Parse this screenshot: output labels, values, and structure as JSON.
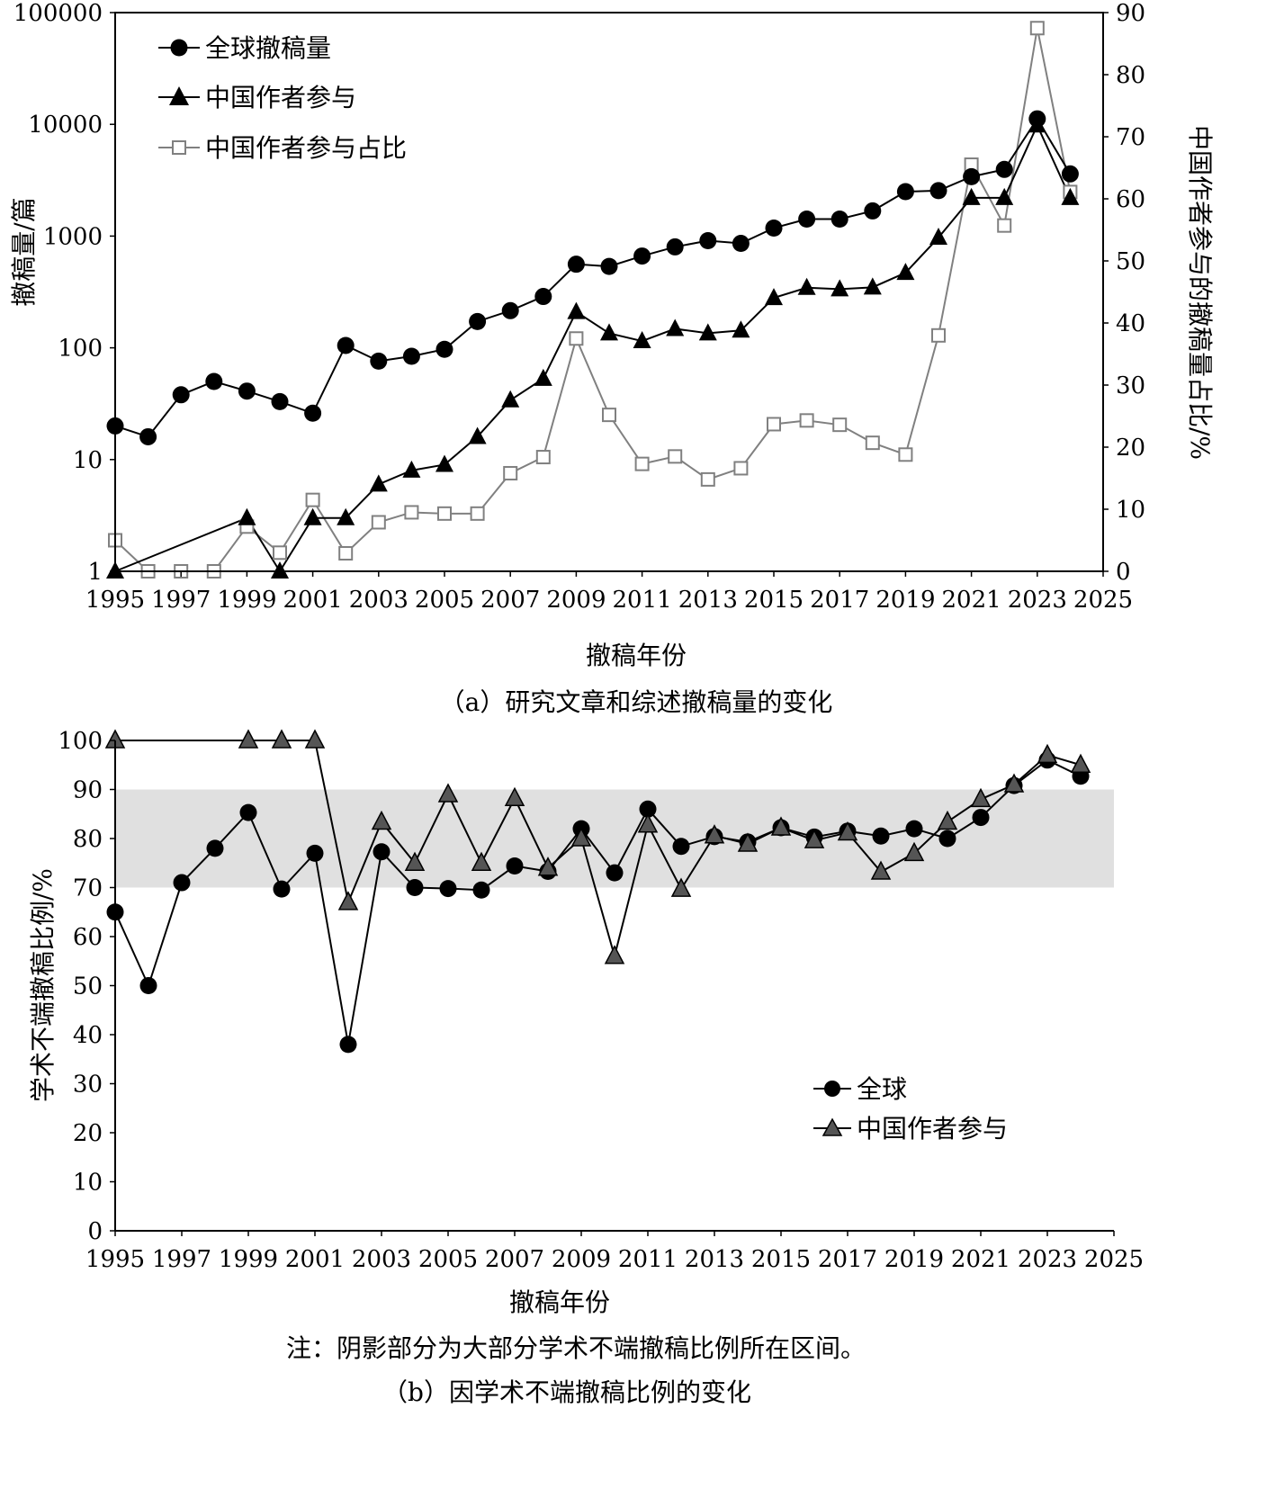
{
  "chart_data": [
    {
      "type": "line",
      "caption": "（a）研究文章和综述撤稿量的变化",
      "xlabel": "撤稿年份",
      "ylabel_left": "撤稿量/篇",
      "ylabel_right": "中国作者参与的撤稿量占比/%",
      "y_scale_left": "log",
      "ylim_left": [
        1,
        100000
      ],
      "ylim_right": [
        0,
        90
      ],
      "xlim": [
        1995,
        2025
      ],
      "x_ticks": [
        "1995",
        "1997",
        "1999",
        "2001",
        "2003",
        "2005",
        "2007",
        "2009",
        "2011",
        "2013",
        "2015",
        "2017",
        "2019",
        "2021",
        "2023",
        "2025"
      ],
      "y_ticks_left": [
        "1",
        "10",
        "100",
        "1000",
        "10000",
        "100000"
      ],
      "y_ticks_right": [
        "0",
        "10",
        "20",
        "30",
        "40",
        "50",
        "60",
        "70",
        "80",
        "90"
      ],
      "grid": false,
      "legend_position": "top-left",
      "x": [
        1995,
        1996,
        1997,
        1998,
        1999,
        2000,
        2001,
        2002,
        2003,
        2004,
        2005,
        2006,
        2007,
        2008,
        2009,
        2010,
        2011,
        2012,
        2013,
        2014,
        2015,
        2016,
        2017,
        2018,
        2019,
        2020,
        2021,
        2022,
        2023,
        2024
      ],
      "series": [
        {
          "name": "全球撤稿量",
          "axis": "left",
          "marker": "circle",
          "color": "#000000",
          "values": [
            20,
            16,
            38,
            50,
            41,
            33,
            26,
            105,
            76,
            84,
            97,
            172,
            215,
            288,
            560,
            535,
            663,
            800,
            910,
            860,
            1180,
            1420,
            1420,
            1680,
            2500,
            2550,
            3400,
            3950,
            11200,
            3600
          ]
        },
        {
          "name": "中国作者参与",
          "axis": "left",
          "marker": "triangle",
          "color": "#000000",
          "values": [
            1,
            null,
            null,
            null,
            3,
            1,
            3,
            3,
            6,
            8,
            9,
            16,
            34,
            53,
            210,
            135,
            115,
            148,
            135,
            143,
            280,
            345,
            335,
            348,
            470,
            970,
            2200,
            2200,
            9800,
            2200
          ]
        },
        {
          "name": "中国作者参与占比",
          "axis": "right",
          "marker": "square-open",
          "color": "#808080",
          "values": [
            5,
            0,
            0,
            0,
            7.2,
            3,
            11.5,
            2.9,
            7.9,
            9.5,
            9.3,
            9.3,
            15.8,
            18.4,
            37.5,
            25.2,
            17.3,
            18.5,
            14.8,
            16.6,
            23.7,
            24.3,
            23.6,
            20.7,
            18.8,
            38,
            65.5,
            55.7,
            87.5,
            61.1
          ]
        }
      ]
    },
    {
      "type": "line",
      "caption": "（b）因学术不端撤稿比例的变化",
      "note": "注：阴影部分为大部分学术不端撤稿比例所在区间。",
      "xlabel": "撤稿年份",
      "ylabel": "学术不端撤稿比例/%",
      "ylim": [
        0,
        100
      ],
      "xlim": [
        1995,
        2025
      ],
      "x_ticks": [
        "1995",
        "1997",
        "1999",
        "2001",
        "2003",
        "2005",
        "2007",
        "2009",
        "2011",
        "2013",
        "2015",
        "2017",
        "2019",
        "2021",
        "2023",
        "2025"
      ],
      "y_ticks": [
        "0",
        "10",
        "20",
        "30",
        "40",
        "50",
        "60",
        "70",
        "80",
        "90",
        "100"
      ],
      "shaded_band": [
        70,
        90
      ],
      "shade_color": "#e0e0e0",
      "grid": false,
      "legend_position": "bottom-right",
      "x": [
        1995,
        1996,
        1997,
        1998,
        1999,
        2000,
        2001,
        2002,
        2003,
        2004,
        2005,
        2006,
        2007,
        2008,
        2009,
        2010,
        2011,
        2012,
        2013,
        2014,
        2015,
        2016,
        2017,
        2018,
        2019,
        2020,
        2021,
        2022,
        2023,
        2024
      ],
      "series": [
        {
          "name": "全球",
          "marker": "circle",
          "color": "#000000",
          "values": [
            65,
            50,
            71,
            78,
            85.3,
            69.7,
            77,
            38,
            77.3,
            70,
            69.8,
            69.5,
            74.4,
            73.3,
            82,
            73,
            86,
            78.4,
            80.4,
            79.3,
            82.2,
            80.3,
            81.5,
            80.5,
            82,
            80,
            84.3,
            90.8,
            96,
            92.7
          ]
        },
        {
          "name": "中国作者参与",
          "marker": "triangle",
          "color": "#000000",
          "values": [
            100,
            null,
            null,
            null,
            100,
            100,
            100,
            67,
            83.4,
            75,
            89,
            75,
            88.2,
            74,
            80,
            56,
            82.8,
            69.7,
            80.6,
            78.9,
            82.2,
            79.6,
            81.2,
            73.2,
            77,
            83.4,
            88,
            91,
            97,
            95
          ]
        }
      ]
    }
  ]
}
